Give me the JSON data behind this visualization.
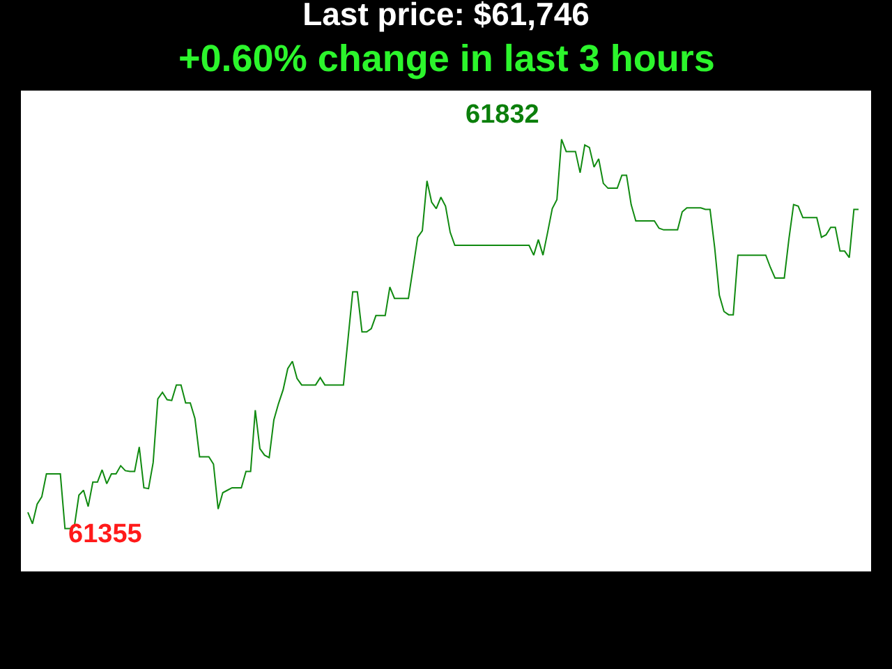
{
  "chart_data": {
    "type": "line",
    "title": "Last price: $61,746",
    "subtitle": "+0.60% change in last 3 hours",
    "categories": [
      null,
      null,
      null,
      null,
      null,
      null,
      null,
      null,
      null,
      null,
      null,
      null,
      null,
      null,
      null,
      null,
      null,
      null,
      null,
      null,
      null,
      null,
      null,
      null,
      null,
      null,
      null,
      null,
      null,
      null,
      null,
      null,
      null,
      null,
      null,
      null,
      null,
      null,
      null,
      null,
      null,
      null,
      null,
      null,
      null,
      null,
      null,
      null,
      null,
      null,
      null,
      null,
      null,
      null,
      null,
      null,
      null,
      null,
      null,
      null,
      null,
      null,
      null,
      null,
      null,
      null,
      null,
      null,
      null,
      null,
      null,
      null,
      null,
      null,
      null,
      null,
      null,
      null,
      null,
      null,
      null,
      null,
      null,
      null,
      null,
      null,
      null,
      null,
      null,
      null,
      null,
      null,
      null,
      null,
      null,
      null,
      null,
      null,
      null,
      null,
      null,
      null,
      null,
      null,
      null,
      null,
      null,
      null,
      null,
      null,
      null,
      null,
      null,
      null,
      null,
      null,
      null,
      null,
      null,
      null,
      null,
      null,
      null,
      null,
      null,
      null,
      null,
      null,
      null,
      null,
      null,
      null,
      null,
      null,
      null,
      null,
      null,
      null,
      null,
      null,
      null,
      null,
      null,
      null,
      null,
      null,
      null,
      null,
      null,
      null,
      null,
      null,
      null,
      null,
      null,
      null,
      null,
      null,
      null,
      null,
      null,
      null,
      null,
      null,
      null,
      null,
      null,
      null,
      null,
      null,
      null,
      null,
      null,
      null,
      null,
      null,
      null,
      null,
      null,
      null
    ],
    "values": [
      61375,
      61361,
      61385,
      61394,
      61422,
      61422,
      61422,
      61422,
      61355,
      61355,
      61357,
      61396,
      61402,
      61382,
      61412,
      61412,
      61427,
      61410,
      61422,
      61422,
      61432,
      61426,
      61425,
      61425,
      61455,
      61405,
      61404,
      61436,
      61514,
      61522,
      61513,
      61512,
      61531,
      61531,
      61509,
      61509,
      61490,
      61443,
      61443,
      61443,
      61434,
      61379,
      61399,
      61402,
      61405,
      61405,
      61405,
      61425,
      61425,
      61500,
      61453,
      61445,
      61442,
      61488,
      61508,
      61525,
      61551,
      61560,
      61539,
      61531,
      61531,
      61531,
      61531,
      61540,
      61531,
      61531,
      61531,
      61531,
      61531,
      61588,
      61645,
      61645,
      61596,
      61596,
      61600,
      61616,
      61616,
      61616,
      61651,
      61637,
      61637,
      61637,
      61637,
      61674,
      61712,
      61720,
      61781,
      61755,
      61747,
      61761,
      61750,
      61718,
      61702,
      61702,
      61702,
      61702,
      61702,
      61702,
      61702,
      61702,
      61702,
      61702,
      61702,
      61702,
      61702,
      61702,
      61702,
      61702,
      61702,
      61690,
      61709,
      61690,
      61718,
      61747,
      61758,
      61832,
      61817,
      61817,
      61817,
      61791,
      61825,
      61822,
      61798,
      61808,
      61778,
      61772,
      61772,
      61772,
      61788,
      61788,
      61752,
      61732,
      61732,
      61732,
      61732,
      61732,
      61723,
      61721,
      61721,
      61721,
      61721,
      61743,
      61748,
      61748,
      61748,
      61748,
      61746,
      61746,
      61699,
      61641,
      61621,
      61617,
      61617,
      61690,
      61690,
      61690,
      61690,
      61690,
      61690,
      61690,
      61675,
      61662,
      61662,
      61662,
      61710,
      61752,
      61750,
      61736,
      61736,
      61736,
      61736,
      61712,
      61715,
      61724,
      61724,
      61695,
      61695,
      61687,
      61746,
      61746
    ],
    "value_labels": [
      null,
      null,
      null,
      null,
      null,
      null,
      null,
      null,
      "61355",
      null,
      null,
      null,
      null,
      null,
      null,
      null,
      null,
      null,
      null,
      null,
      null,
      null,
      null,
      null,
      null,
      null,
      null,
      null,
      null,
      null,
      null,
      null,
      null,
      null,
      null,
      null,
      null,
      null,
      null,
      null,
      null,
      null,
      null,
      null,
      null,
      null,
      null,
      null,
      null,
      null,
      null,
      null,
      null,
      null,
      null,
      null,
      null,
      null,
      null,
      null,
      null,
      null,
      null,
      null,
      null,
      null,
      null,
      null,
      null,
      null,
      null,
      null,
      null,
      null,
      null,
      null,
      null,
      null,
      null,
      null,
      null,
      null,
      null,
      null,
      null,
      null,
      null,
      null,
      null,
      null,
      null,
      null,
      null,
      null,
      null,
      null,
      null,
      null,
      null,
      null,
      null,
      null,
      null,
      null,
      null,
      null,
      null,
      null,
      null,
      null,
      null,
      null,
      null,
      null,
      null,
      "61832",
      null,
      null,
      null,
      null,
      null,
      null,
      null,
      null,
      null,
      null,
      null,
      null,
      null,
      null,
      null,
      null,
      null,
      null,
      null,
      null,
      null,
      null,
      null,
      null,
      null,
      null,
      null,
      null,
      null,
      null,
      null,
      null,
      null,
      null,
      null,
      null,
      null,
      null,
      null,
      null,
      null,
      null,
      null,
      null,
      null,
      null,
      null,
      null,
      null,
      null,
      null,
      null,
      null,
      null,
      null,
      null,
      null,
      null,
      null,
      null,
      null,
      null,
      null,
      null
    ],
    "color": "#108a10",
    "tick_labels": false
  }
}
